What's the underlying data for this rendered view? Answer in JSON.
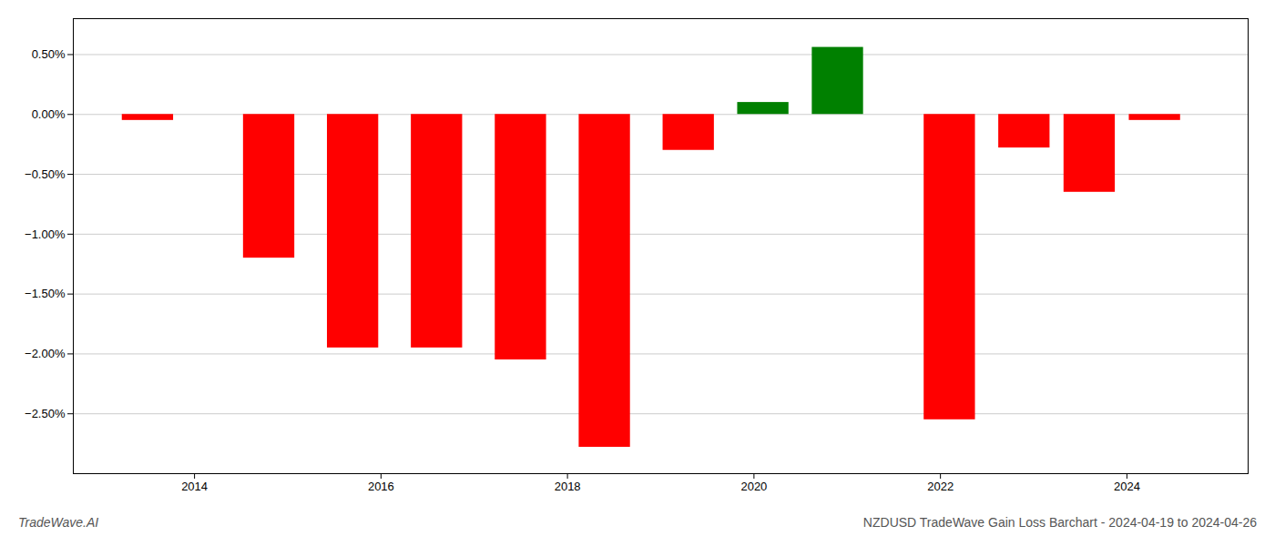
{
  "chart_data": {
    "type": "bar",
    "title": "NZDUSD TradeWave Gain Loss Barchart - 2024-04-19 to 2024-04-26",
    "annotations": [
      "TradeWave.AI"
    ],
    "x": [
      2013.5,
      2014.8,
      2015.7,
      2016.6,
      2017.5,
      2018.4,
      2019.3,
      2020.1,
      2020.9,
      2022.1,
      2022.9,
      2023.6,
      2024.3
    ],
    "values": [
      -0.05,
      -1.2,
      -1.95,
      -1.95,
      -2.05,
      -2.78,
      -0.3,
      0.1,
      0.56,
      -2.55,
      -0.28,
      -0.65,
      -0.05
    ],
    "colors": [
      "#ff0000",
      "#ff0000",
      "#ff0000",
      "#ff0000",
      "#ff0000",
      "#ff0000",
      "#ff0000",
      "#008000",
      "#008000",
      "#ff0000",
      "#ff0000",
      "#ff0000",
      "#ff0000"
    ],
    "xlim": [
      2012.7,
      2025.3
    ],
    "xticks": [
      2014,
      2016,
      2018,
      2020,
      2022,
      2024
    ],
    "ylim": [
      -3.0,
      0.8
    ],
    "yticks": [
      {
        "value": 0.5,
        "label": "0.50%"
      },
      {
        "value": 0.0,
        "label": "0.00%"
      },
      {
        "value": -0.5,
        "label": "−0.50%"
      },
      {
        "value": -1.0,
        "label": "−1.00%"
      },
      {
        "value": -1.5,
        "label": "−1.50%"
      },
      {
        "value": -2.0,
        "label": "−2.00%"
      },
      {
        "value": -2.5,
        "label": "−2.50%"
      }
    ],
    "grid": "y"
  }
}
